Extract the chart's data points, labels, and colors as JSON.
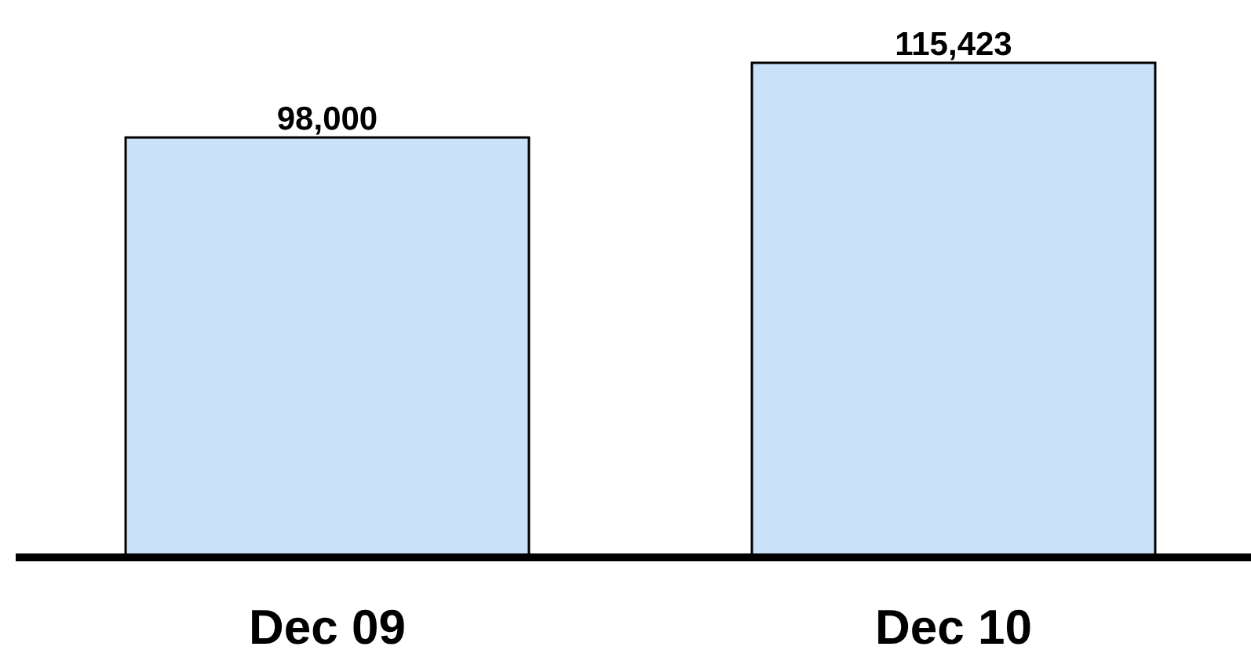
{
  "chart_data": {
    "type": "bar",
    "categories": [
      "Dec 09",
      "Dec 10"
    ],
    "values": [
      98000,
      115423
    ],
    "value_labels": [
      "98,000",
      "115,423"
    ],
    "color": "#c9e1f9"
  }
}
